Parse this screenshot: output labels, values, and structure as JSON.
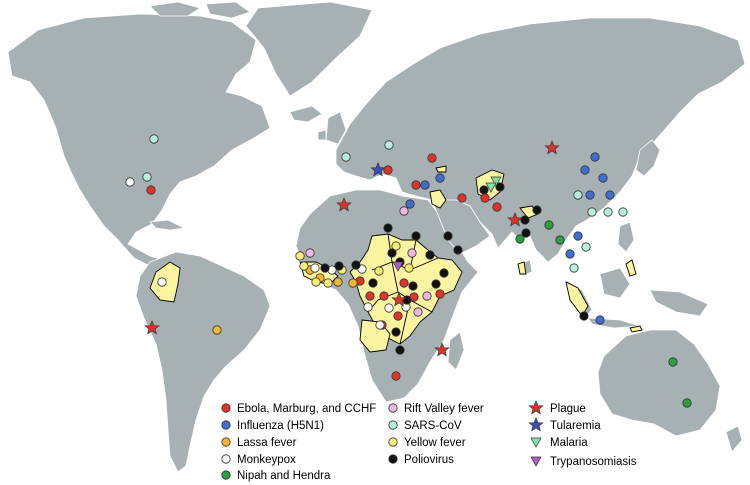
{
  "map": {
    "land_color": "#a7b0b3",
    "highlight_color": "#fbf5a1",
    "border_color": "#ffffff"
  },
  "legend": {
    "items": [
      {
        "key": "ebola",
        "label": "Ebola, Marburg, and CCHF",
        "marker": "circle",
        "fill": "#e0342b"
      },
      {
        "key": "h5n1",
        "label": "Influenza (H5N1)",
        "marker": "circle",
        "fill": "#3f6fd1"
      },
      {
        "key": "lassa",
        "label": "Lassa fever",
        "marker": "circle",
        "fill": "#f1b730"
      },
      {
        "key": "monkeypox",
        "label": "Monkeypox",
        "marker": "circle",
        "fill": "#ffffff"
      },
      {
        "key": "nipah",
        "label": "Nipah and Hendra",
        "marker": "circle",
        "fill": "#2e9e3f"
      },
      {
        "key": "rvf",
        "label": "Rift Valley fever",
        "marker": "circle",
        "fill": "#f2b6e4"
      },
      {
        "key": "sars",
        "label": "SARS-CoV",
        "marker": "circle",
        "fill": "#b7f0dd"
      },
      {
        "key": "yellow",
        "label": "Yellow fever",
        "marker": "circle",
        "fill": "#f5ef73"
      },
      {
        "key": "polio",
        "label": "Poliovirus",
        "marker": "circle",
        "fill": "#111111"
      },
      {
        "key": "plague",
        "label": "Plague",
        "marker": "star",
        "fill": "#d9342b"
      },
      {
        "key": "tularemia",
        "label": "Tularemia",
        "marker": "star",
        "fill": "#3a4fb8"
      },
      {
        "key": "malaria",
        "label": "Malaria",
        "marker": "tri-down",
        "fill": "#7ee0b0"
      },
      {
        "key": "tryp",
        "label": "Trypanosomiasis",
        "marker": "tri-down",
        "fill": "#b45cc4"
      }
    ]
  }
}
